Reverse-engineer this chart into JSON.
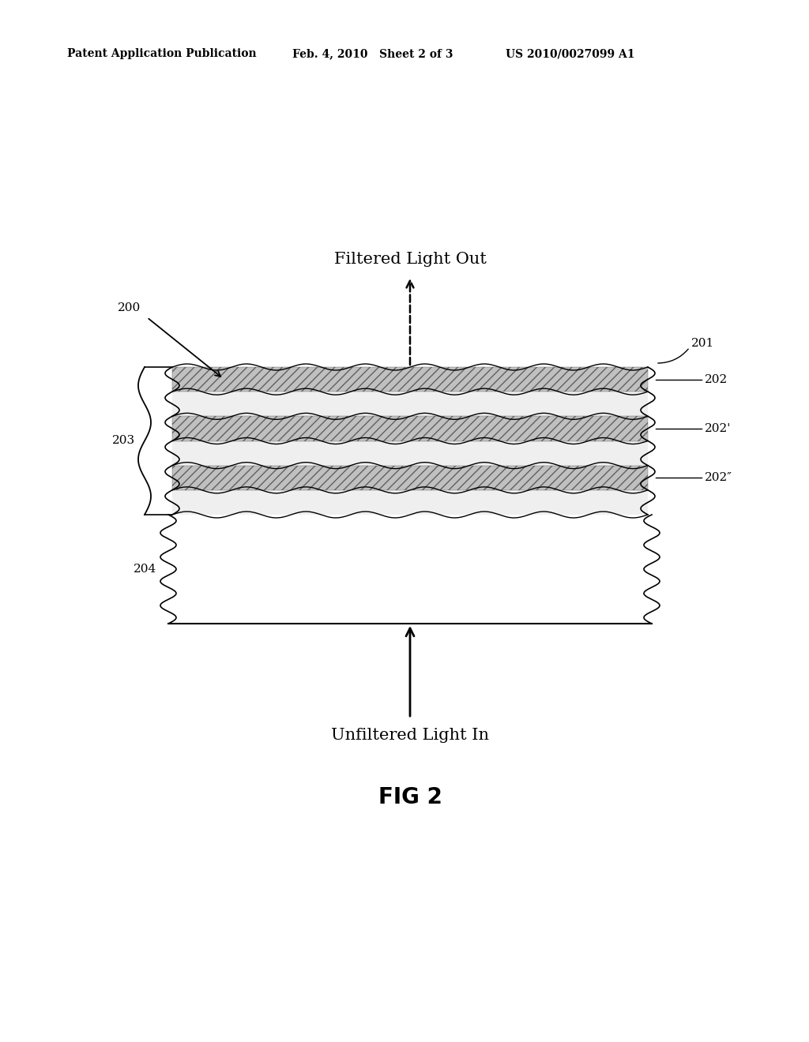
{
  "bg_color": "#ffffff",
  "header_left": "Patent Application Publication",
  "header_mid": "Feb. 4, 2010   Sheet 2 of 3",
  "header_right": "US 2010/0027099 A1",
  "header_fontsize": 10,
  "fig_label": "FIG 2",
  "fig_label_fontsize": 20,
  "label_200": "200",
  "label_201": "201",
  "label_202": "202",
  "label_202p": "202'",
  "label_202pp": "202″",
  "label_203": "203",
  "label_204": "204",
  "text_filtered_out": "Filtered Light Out",
  "text_unfiltered_in": "Unfiltered Light In"
}
